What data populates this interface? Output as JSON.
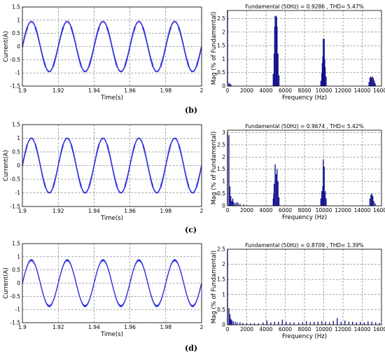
{
  "chart_data": [
    {
      "type": "line",
      "panel": "b-left",
      "xlabel": "Time(s)",
      "ylabel": "Current(A)",
      "xlim": [
        1.9,
        2.0
      ],
      "ylim": [
        -1.5,
        1.5
      ],
      "xticks": [
        "1.9",
        "1.92",
        "1.94",
        "1.96",
        "1.98",
        "2"
      ],
      "yticks": [
        "-1.5",
        "-1",
        "-0.5",
        "0",
        "0.5",
        "1",
        "1.5"
      ],
      "grid": true,
      "series": [
        {
          "amplitude": 0.95,
          "frequency_hz": 50,
          "phase_deg": 0,
          "ripple": 0.04,
          "color": "#3030e0"
        }
      ]
    },
    {
      "type": "bar",
      "panel": "b-right",
      "title": "Fundamental (50Hz) = 0.9286 , THD= 5.47%",
      "xlabel": "Frequency (Hz)",
      "ylabel": "Mag (% of Fundamental)",
      "xlim": [
        0,
        16000
      ],
      "ylim": [
        0,
        2.8
      ],
      "xticks": [
        "0",
        "2000",
        "4000",
        "6000",
        "8000",
        "10000",
        "12000",
        "14000",
        "16000"
      ],
      "yticks": [
        "0",
        "0.5",
        "1",
        "1.5",
        "2",
        "2.5"
      ],
      "grid": true,
      "color": "#0a0a8a",
      "points": [
        [
          0,
          2.8
        ],
        [
          150,
          0.12
        ],
        [
          250,
          0.08
        ],
        [
          350,
          0.06
        ],
        [
          4750,
          0.45
        ],
        [
          4850,
          1.2
        ],
        [
          4900,
          2.2
        ],
        [
          4950,
          2.6
        ],
        [
          5050,
          2.6
        ],
        [
          5100,
          2.55
        ],
        [
          5150,
          2.2
        ],
        [
          5250,
          1.2
        ],
        [
          5350,
          0.4
        ],
        [
          9700,
          0.2
        ],
        [
          9800,
          0.5
        ],
        [
          9850,
          0.85
        ],
        [
          9900,
          1.1
        ],
        [
          9950,
          1.75
        ],
        [
          10050,
          1.75
        ],
        [
          10100,
          1.0
        ],
        [
          10150,
          0.7
        ],
        [
          10250,
          0.35
        ],
        [
          14700,
          0.15
        ],
        [
          14800,
          0.3
        ],
        [
          14850,
          0.35
        ],
        [
          14950,
          0.32
        ],
        [
          15050,
          0.36
        ],
        [
          15150,
          0.3
        ],
        [
          15250,
          0.2
        ],
        [
          15350,
          0.1
        ]
      ]
    },
    {
      "type": "line",
      "panel": "c-left",
      "xlabel": "Time(s)",
      "ylabel": "Current(A)",
      "xlim": [
        1.9,
        2.0
      ],
      "ylim": [
        -1.5,
        1.5
      ],
      "xticks": [
        "1.9",
        "1.92",
        "1.94",
        "1.96",
        "1.98",
        "2"
      ],
      "yticks": [
        "-1.5",
        "-1",
        "-0.5",
        "0",
        "0.5",
        "1",
        "1.5"
      ],
      "grid": true,
      "series": [
        {
          "amplitude": 1.0,
          "frequency_hz": 50,
          "phase_deg": 0,
          "ripple": 0.04,
          "color": "#3030e0"
        }
      ]
    },
    {
      "type": "bar",
      "panel": "c-right",
      "title": "Fundamental (50Hz) = 0.9674 , THD= 5.42%",
      "xlabel": "Frequency (Hz)",
      "ylabel": "Mag (% of Fundamental)",
      "xlim": [
        0,
        16000
      ],
      "ylim": [
        0,
        3.1
      ],
      "xticks": [
        "0",
        "2000",
        "4000",
        "6000",
        "8000",
        "10000",
        "12000",
        "14000",
        "16000"
      ],
      "yticks": [
        "0",
        "0.5",
        "1",
        "1.5",
        "2",
        "2.5",
        "3"
      ],
      "grid": true,
      "color": "#0a0a8a",
      "points": [
        [
          0,
          3.0
        ],
        [
          150,
          2.9
        ],
        [
          250,
          0.8
        ],
        [
          350,
          0.4
        ],
        [
          450,
          0.2
        ],
        [
          550,
          0.3
        ],
        [
          650,
          0.15
        ],
        [
          800,
          0.1
        ],
        [
          950,
          0.15
        ],
        [
          1100,
          0.12
        ],
        [
          1300,
          0.08
        ],
        [
          1700,
          0.05
        ],
        [
          4750,
          0.3
        ],
        [
          4800,
          0.5
        ],
        [
          4850,
          0.9
        ],
        [
          4950,
          1.7
        ],
        [
          5050,
          1.3
        ],
        [
          5150,
          1.5
        ],
        [
          5250,
          1.0
        ],
        [
          5350,
          0.35
        ],
        [
          9700,
          0.3
        ],
        [
          9800,
          0.6
        ],
        [
          9900,
          0.8
        ],
        [
          9950,
          1.9
        ],
        [
          10050,
          1.6
        ],
        [
          10150,
          0.6
        ],
        [
          10250,
          0.3
        ],
        [
          14800,
          0.3
        ],
        [
          14900,
          0.45
        ],
        [
          15000,
          0.5
        ],
        [
          15100,
          0.4
        ],
        [
          15200,
          0.2
        ],
        [
          15350,
          0.1
        ]
      ]
    },
    {
      "type": "line",
      "panel": "d-left",
      "xlabel": "Time(s)",
      "ylabel": "Current(A)",
      "xlim": [
        1.9,
        2.0
      ],
      "ylim": [
        -1.5,
        1.5
      ],
      "xticks": [
        "1.9",
        "1.92",
        "1.94",
        "1.96",
        "1.98",
        "2"
      ],
      "yticks": [
        "-1.5",
        "-1",
        "-0.5",
        "0",
        "0.5",
        "1",
        "1.5"
      ],
      "grid": true,
      "series": [
        {
          "amplitude": 0.87,
          "frequency_hz": 50,
          "phase_deg": 0,
          "ripple": 0.015,
          "color": "#3030e0"
        }
      ]
    },
    {
      "type": "bar",
      "panel": "d-right",
      "title": "Fundamental (50Hz) = 0.8709 , THD= 1.39%",
      "xlabel": "Frequency (Hz)",
      "ylabel": "Mag (% of Fundamental)",
      "xlim": [
        0,
        16000
      ],
      "ylim": [
        0,
        2.5
      ],
      "xticks": [
        "0",
        "2000",
        "4000",
        "6000",
        "8000",
        "10000",
        "12000",
        "14000",
        "16000"
      ],
      "yticks": [
        "0",
        "0.5",
        "1",
        "1.5",
        "2",
        "2.5"
      ],
      "grid": true,
      "color": "#0a0a8a",
      "points": [
        [
          0,
          2.5
        ],
        [
          150,
          0.55
        ],
        [
          250,
          0.35
        ],
        [
          350,
          0.2
        ],
        [
          450,
          0.15
        ],
        [
          600,
          0.12
        ],
        [
          800,
          0.1
        ],
        [
          1000,
          0.08
        ],
        [
          1300,
          0.08
        ],
        [
          1600,
          0.06
        ],
        [
          2000,
          0.06
        ],
        [
          2400,
          0.05
        ],
        [
          2800,
          0.06
        ],
        [
          3200,
          0.05
        ],
        [
          3700,
          0.08
        ],
        [
          4100,
          0.14
        ],
        [
          4500,
          0.08
        ],
        [
          4900,
          0.1
        ],
        [
          5300,
          0.1
        ],
        [
          5700,
          0.17
        ],
        [
          6100,
          0.1
        ],
        [
          6500,
          0.08
        ],
        [
          6900,
          0.08
        ],
        [
          7400,
          0.07
        ],
        [
          7800,
          0.09
        ],
        [
          8200,
          0.12
        ],
        [
          8600,
          0.09
        ],
        [
          9000,
          0.1
        ],
        [
          9400,
          0.1
        ],
        [
          9800,
          0.12
        ],
        [
          10200,
          0.1
        ],
        [
          10600,
          0.08
        ],
        [
          11000,
          0.13
        ],
        [
          11400,
          0.22
        ],
        [
          11800,
          0.1
        ],
        [
          12200,
          0.14
        ],
        [
          12600,
          0.1
        ],
        [
          13000,
          0.1
        ],
        [
          13400,
          0.08
        ],
        [
          13800,
          0.1
        ],
        [
          14200,
          0.08
        ],
        [
          14600,
          0.11
        ],
        [
          15000,
          0.1
        ],
        [
          15400,
          0.08
        ],
        [
          15800,
          0.06
        ]
      ]
    }
  ],
  "panel_labels": [
    "(b)",
    "(c)",
    "(d)"
  ]
}
